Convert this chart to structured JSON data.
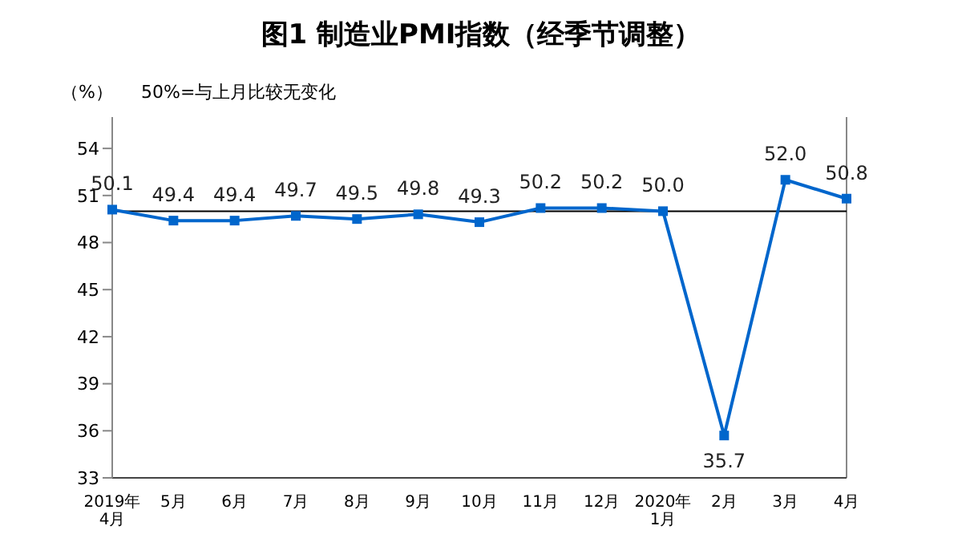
{
  "chart_data": {
    "type": "line",
    "title": "图1  制造业PMI指数（经季节调整）",
    "ylabel": "（%）",
    "annotations": [
      "50%=与上月比较无变化"
    ],
    "categories": [
      "2019年\n4月",
      "5月",
      "6月",
      "7月",
      "8月",
      "9月",
      "10月",
      "11月",
      "12月",
      "2020年\n1月",
      "2月",
      "3月",
      "4月"
    ],
    "series": [
      {
        "color": "#0066cc",
        "values": [
          50.1,
          49.4,
          49.4,
          49.7,
          49.5,
          49.8,
          49.3,
          50.2,
          50.2,
          50.0,
          35.7,
          52.0,
          50.8
        ],
        "value_labels": [
          "50.1",
          "49.4",
          "49.4",
          "49.7",
          "49.5",
          "49.8",
          "49.3",
          "50.2",
          "50.2",
          "50.0",
          "35.7",
          "52.0",
          "50.8"
        ]
      }
    ],
    "ylim": [
      33,
      56
    ],
    "yticks": [
      33,
      36,
      39,
      42,
      45,
      48,
      51,
      54
    ],
    "ref_lines": [
      {
        "axis": "y",
        "value": 50,
        "color": "#000000"
      }
    ],
    "marker": "square",
    "line_style": "solid"
  }
}
